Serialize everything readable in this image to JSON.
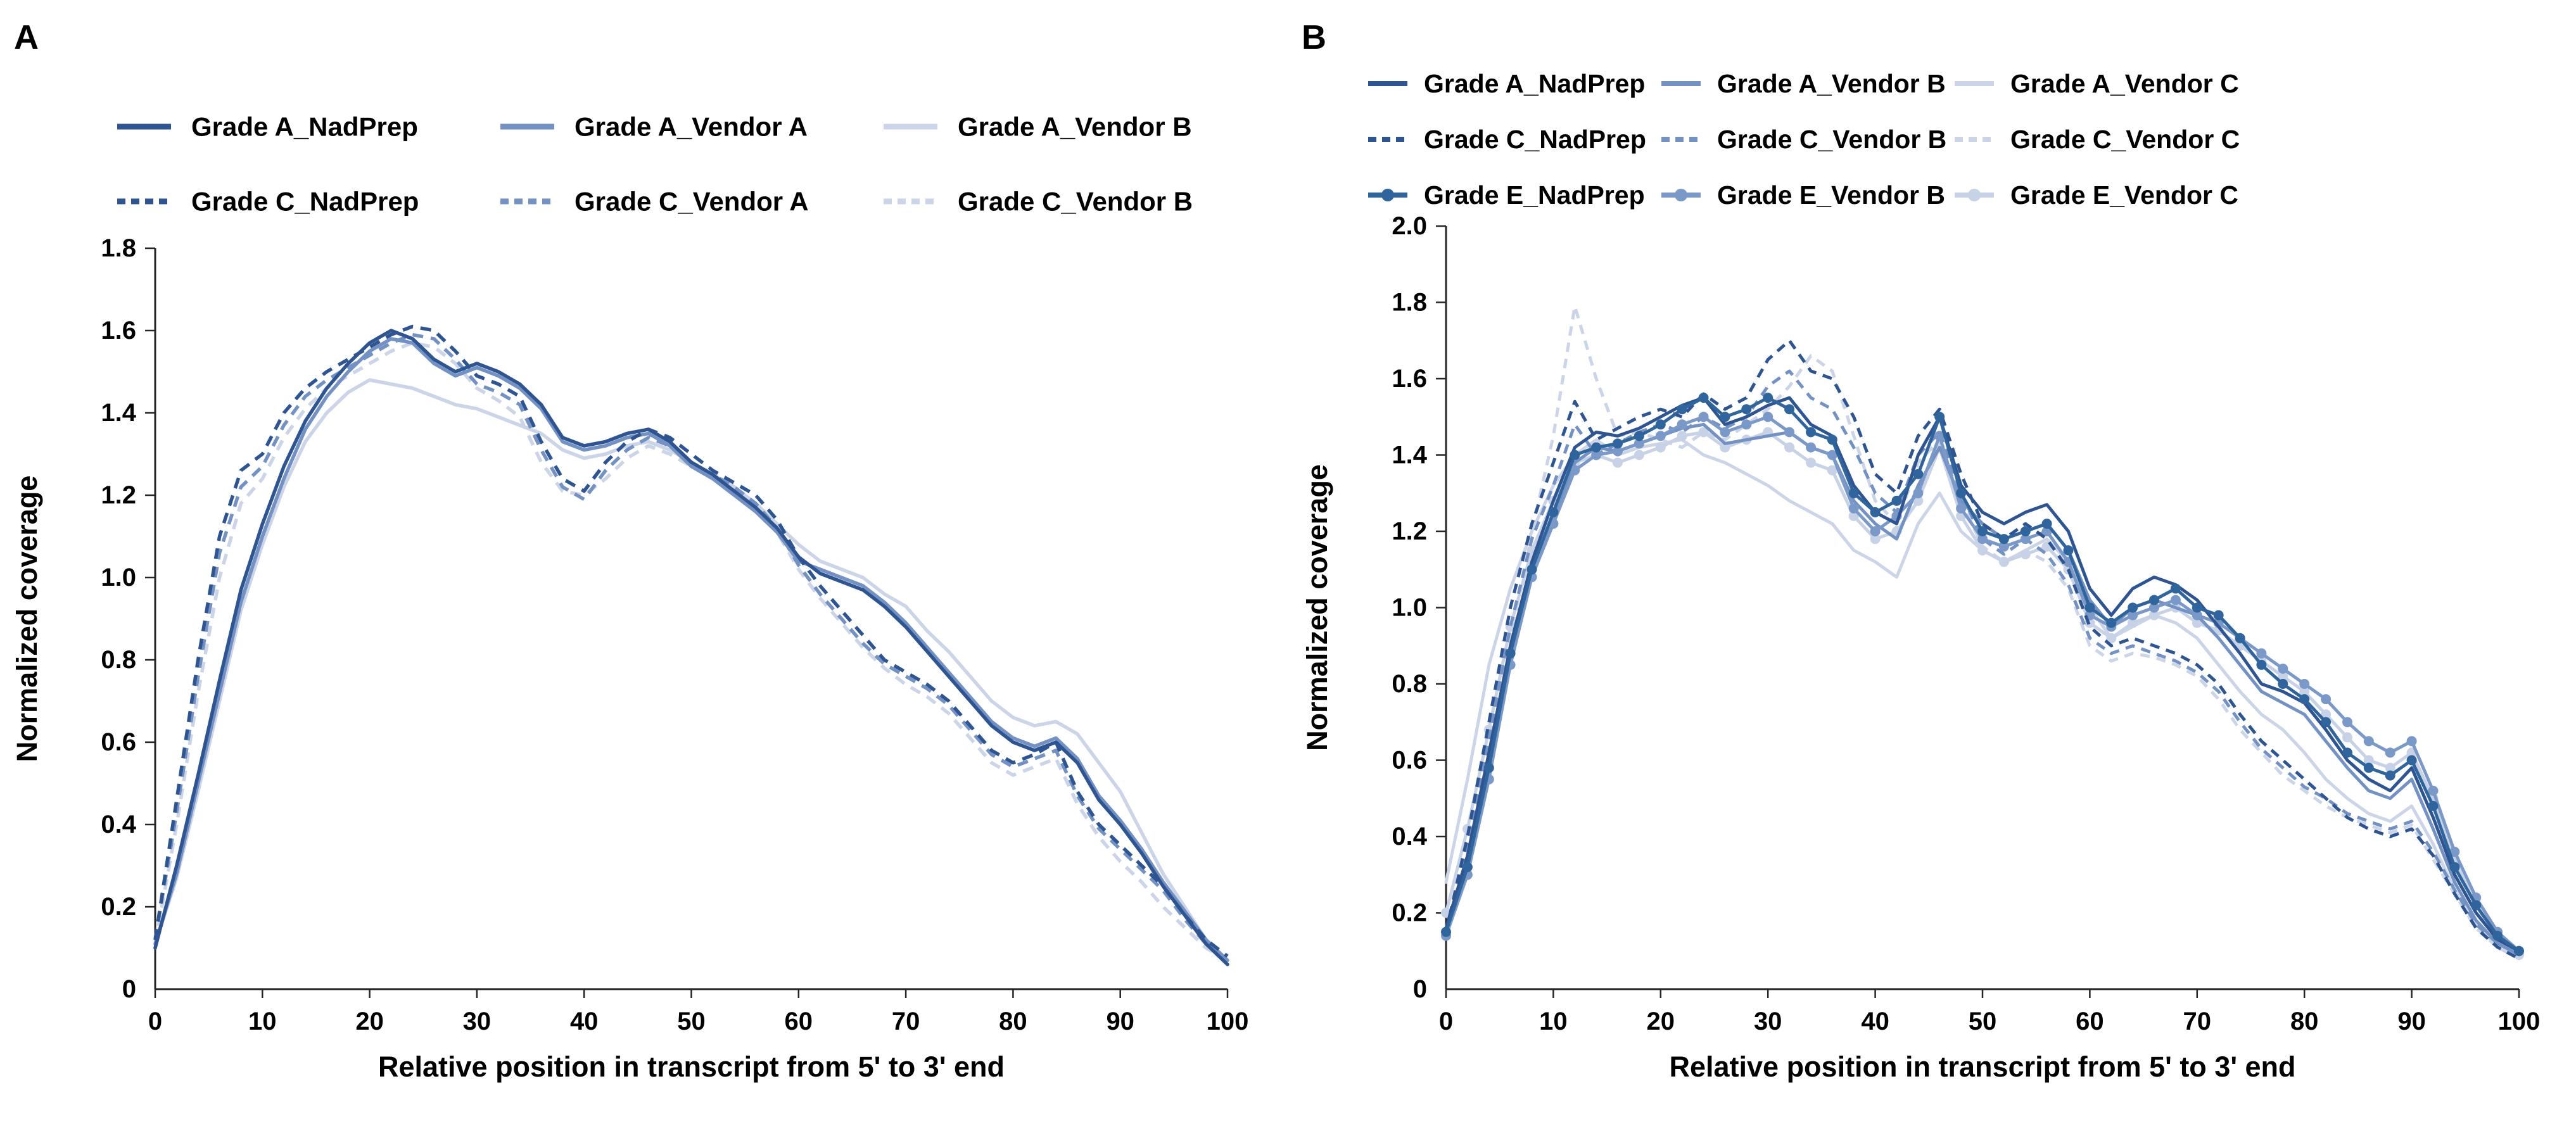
{
  "chart_data": [
    {
      "type": "line",
      "panel_label": "A",
      "title": "",
      "xlabel": "Relative position in transcript from 5' to 3' end",
      "ylabel": "Normalized coverage",
      "xlim": [
        0,
        100
      ],
      "ylim": [
        0,
        1.8
      ],
      "grid": false,
      "legend_position": "top",
      "xtick_labels": [
        "0",
        "10",
        "20",
        "30",
        "40",
        "50",
        "60",
        "70",
        "80",
        "90",
        "100"
      ],
      "ytick_labels": [
        "0",
        "0.2",
        "0.4",
        "0.6",
        "0.8",
        "1.0",
        "1.2",
        "1.4",
        "1.6",
        "1.8"
      ],
      "x": [
        0,
        2,
        4,
        6,
        8,
        10,
        12,
        14,
        16,
        18,
        20,
        22,
        24,
        26,
        28,
        30,
        32,
        34,
        36,
        38,
        40,
        42,
        44,
        46,
        48,
        50,
        52,
        54,
        56,
        58,
        60,
        62,
        64,
        66,
        68,
        70,
        72,
        74,
        76,
        78,
        80,
        82,
        84,
        86,
        88,
        90,
        92,
        94,
        96,
        98,
        100
      ],
      "series": [
        {
          "name": "Grade A_NadPrep",
          "color": "#2e5491",
          "line_style": "solid",
          "marker": false,
          "values": [
            0.1,
            0.3,
            0.52,
            0.75,
            0.97,
            1.13,
            1.27,
            1.38,
            1.46,
            1.52,
            1.57,
            1.6,
            1.58,
            1.53,
            1.5,
            1.52,
            1.5,
            1.47,
            1.42,
            1.34,
            1.32,
            1.33,
            1.35,
            1.36,
            1.33,
            1.28,
            1.25,
            1.21,
            1.17,
            1.12,
            1.05,
            1.01,
            0.99,
            0.97,
            0.93,
            0.88,
            0.82,
            0.76,
            0.7,
            0.64,
            0.6,
            0.58,
            0.6,
            0.55,
            0.46,
            0.4,
            0.33,
            0.25,
            0.18,
            0.11,
            0.06
          ]
        },
        {
          "name": "Grade A_Vendor A",
          "color": "#7391c3",
          "line_style": "solid",
          "marker": false,
          "values": [
            0.11,
            0.28,
            0.5,
            0.72,
            0.94,
            1.1,
            1.24,
            1.36,
            1.44,
            1.5,
            1.55,
            1.58,
            1.57,
            1.52,
            1.49,
            1.51,
            1.49,
            1.46,
            1.41,
            1.33,
            1.31,
            1.32,
            1.34,
            1.35,
            1.32,
            1.27,
            1.24,
            1.2,
            1.16,
            1.11,
            1.04,
            1.02,
            1.0,
            0.98,
            0.94,
            0.89,
            0.83,
            0.77,
            0.71,
            0.65,
            0.61,
            0.59,
            0.61,
            0.56,
            0.47,
            0.41,
            0.34,
            0.26,
            0.19,
            0.12,
            0.07
          ]
        },
        {
          "name": "Grade A_Vendor B",
          "color": "#ccd5e8",
          "line_style": "solid",
          "marker": false,
          "values": [
            0.11,
            0.27,
            0.48,
            0.7,
            0.92,
            1.08,
            1.22,
            1.33,
            1.4,
            1.45,
            1.48,
            1.47,
            1.46,
            1.44,
            1.42,
            1.41,
            1.39,
            1.37,
            1.35,
            1.31,
            1.29,
            1.3,
            1.32,
            1.33,
            1.31,
            1.28,
            1.25,
            1.22,
            1.18,
            1.13,
            1.08,
            1.04,
            1.02,
            1.0,
            0.96,
            0.93,
            0.87,
            0.82,
            0.76,
            0.7,
            0.66,
            0.64,
            0.65,
            0.62,
            0.55,
            0.48,
            0.38,
            0.28,
            0.2,
            0.12,
            0.07
          ]
        },
        {
          "name": "Grade C_NadPrep",
          "color": "#2e5491",
          "line_style": "dashed",
          "marker": false,
          "values": [
            0.12,
            0.46,
            0.8,
            1.1,
            1.26,
            1.3,
            1.4,
            1.46,
            1.5,
            1.53,
            1.56,
            1.59,
            1.61,
            1.6,
            1.55,
            1.49,
            1.47,
            1.44,
            1.33,
            1.24,
            1.21,
            1.28,
            1.33,
            1.36,
            1.34,
            1.3,
            1.26,
            1.23,
            1.2,
            1.14,
            1.05,
            0.98,
            0.92,
            0.86,
            0.8,
            0.77,
            0.74,
            0.7,
            0.64,
            0.58,
            0.55,
            0.57,
            0.6,
            0.48,
            0.4,
            0.35,
            0.3,
            0.25,
            0.18,
            0.12,
            0.08
          ]
        },
        {
          "name": "Grade C_Vendor A",
          "color": "#7391c3",
          "line_style": "dashed",
          "marker": false,
          "values": [
            0.12,
            0.43,
            0.76,
            1.06,
            1.22,
            1.27,
            1.37,
            1.44,
            1.48,
            1.51,
            1.54,
            1.57,
            1.59,
            1.58,
            1.53,
            1.47,
            1.45,
            1.42,
            1.31,
            1.22,
            1.19,
            1.26,
            1.31,
            1.34,
            1.32,
            1.28,
            1.25,
            1.22,
            1.18,
            1.12,
            1.03,
            0.96,
            0.9,
            0.84,
            0.79,
            0.76,
            0.73,
            0.69,
            0.63,
            0.57,
            0.54,
            0.56,
            0.58,
            0.47,
            0.39,
            0.34,
            0.29,
            0.24,
            0.17,
            0.11,
            0.07
          ]
        },
        {
          "name": "Grade C_Vendor B",
          "color": "#ccd5e8",
          "line_style": "dashed",
          "marker": false,
          "values": [
            0.11,
            0.4,
            0.72,
            1.0,
            1.18,
            1.24,
            1.34,
            1.41,
            1.46,
            1.49,
            1.52,
            1.55,
            1.57,
            1.56,
            1.52,
            1.46,
            1.43,
            1.39,
            1.28,
            1.21,
            1.2,
            1.24,
            1.29,
            1.32,
            1.3,
            1.27,
            1.24,
            1.21,
            1.17,
            1.11,
            1.02,
            0.95,
            0.89,
            0.83,
            0.78,
            0.74,
            0.71,
            0.67,
            0.61,
            0.55,
            0.52,
            0.54,
            0.56,
            0.45,
            0.37,
            0.31,
            0.26,
            0.2,
            0.15,
            0.1,
            0.07
          ]
        }
      ]
    },
    {
      "type": "line",
      "panel_label": "B",
      "title": "",
      "xlabel": "Relative position in transcript from 5' to 3' end",
      "ylabel": "Normalized coverage",
      "xlim": [
        0,
        100
      ],
      "ylim": [
        0,
        2.0
      ],
      "grid": false,
      "legend_position": "top",
      "xtick_labels": [
        "0",
        "10",
        "20",
        "30",
        "40",
        "50",
        "60",
        "70",
        "80",
        "90",
        "100"
      ],
      "ytick_labels": [
        "0",
        "0.2",
        "0.4",
        "0.6",
        "0.8",
        "1.0",
        "1.2",
        "1.4",
        "1.6",
        "1.8",
        "2.0"
      ],
      "x": [
        0,
        2,
        4,
        6,
        8,
        10,
        12,
        14,
        16,
        18,
        20,
        22,
        24,
        26,
        28,
        30,
        32,
        34,
        36,
        38,
        40,
        42,
        44,
        46,
        48,
        50,
        52,
        54,
        56,
        58,
        60,
        62,
        64,
        66,
        68,
        70,
        72,
        74,
        76,
        78,
        80,
        82,
        84,
        86,
        88,
        90,
        92,
        94,
        96,
        98,
        100
      ],
      "series": [
        {
          "name": "Grade A_NadPrep",
          "color": "#2e5491",
          "line_style": "solid",
          "marker": false,
          "values": [
            0.16,
            0.35,
            0.62,
            0.9,
            1.12,
            1.28,
            1.42,
            1.46,
            1.45,
            1.47,
            1.5,
            1.53,
            1.55,
            1.48,
            1.5,
            1.53,
            1.55,
            1.48,
            1.45,
            1.32,
            1.25,
            1.22,
            1.4,
            1.5,
            1.32,
            1.25,
            1.22,
            1.25,
            1.27,
            1.2,
            1.05,
            0.98,
            1.05,
            1.08,
            1.06,
            1.02,
            0.95,
            0.88,
            0.8,
            0.78,
            0.75,
            0.68,
            0.6,
            0.55,
            0.52,
            0.58,
            0.45,
            0.3,
            0.2,
            0.13,
            0.1
          ]
        },
        {
          "name": "Grade A_Vendor B",
          "color": "#7391c3",
          "line_style": "solid",
          "marker": false,
          "values": [
            0.16,
            0.33,
            0.58,
            0.85,
            1.08,
            1.24,
            1.38,
            1.42,
            1.41,
            1.43,
            1.45,
            1.47,
            1.48,
            1.43,
            1.44,
            1.45,
            1.46,
            1.42,
            1.4,
            1.28,
            1.22,
            1.18,
            1.32,
            1.42,
            1.28,
            1.22,
            1.18,
            1.2,
            1.22,
            1.15,
            1.02,
            0.95,
            1.0,
            1.02,
            1.0,
            0.98,
            0.92,
            0.85,
            0.78,
            0.75,
            0.72,
            0.65,
            0.58,
            0.52,
            0.5,
            0.55,
            0.42,
            0.28,
            0.18,
            0.12,
            0.09
          ]
        },
        {
          "name": "Grade A_Vendor C",
          "color": "#ccd5e8",
          "line_style": "solid",
          "marker": false,
          "values": [
            0.28,
            0.55,
            0.85,
            1.05,
            1.2,
            1.32,
            1.4,
            1.44,
            1.4,
            1.42,
            1.43,
            1.44,
            1.4,
            1.38,
            1.35,
            1.32,
            1.28,
            1.25,
            1.22,
            1.15,
            1.12,
            1.08,
            1.22,
            1.3,
            1.2,
            1.15,
            1.12,
            1.15,
            1.18,
            1.12,
            1.0,
            0.92,
            0.95,
            0.98,
            0.96,
            0.92,
            0.85,
            0.78,
            0.72,
            0.68,
            0.62,
            0.55,
            0.5,
            0.46,
            0.44,
            0.48,
            0.38,
            0.26,
            0.17,
            0.11,
            0.08
          ]
        },
        {
          "name": "Grade C_NadPrep",
          "color": "#2e5491",
          "line_style": "dashed",
          "marker": false,
          "values": [
            0.15,
            0.4,
            0.7,
            1.0,
            1.22,
            1.38,
            1.54,
            1.44,
            1.47,
            1.5,
            1.52,
            1.5,
            1.56,
            1.52,
            1.55,
            1.65,
            1.7,
            1.62,
            1.6,
            1.5,
            1.35,
            1.3,
            1.45,
            1.52,
            1.35,
            1.22,
            1.18,
            1.22,
            1.18,
            1.1,
            0.95,
            0.9,
            0.92,
            0.9,
            0.88,
            0.85,
            0.8,
            0.72,
            0.65,
            0.6,
            0.55,
            0.5,
            0.45,
            0.42,
            0.4,
            0.42,
            0.35,
            0.25,
            0.16,
            0.11,
            0.08
          ]
        },
        {
          "name": "Grade C_Vendor B",
          "color": "#7391c3",
          "line_style": "dashed",
          "marker": false,
          "values": [
            0.15,
            0.38,
            0.66,
            0.95,
            1.18,
            1.32,
            1.48,
            1.4,
            1.43,
            1.46,
            1.48,
            1.46,
            1.5,
            1.47,
            1.5,
            1.58,
            1.62,
            1.55,
            1.52,
            1.42,
            1.3,
            1.25,
            1.4,
            1.46,
            1.3,
            1.18,
            1.14,
            1.18,
            1.14,
            1.06,
            0.92,
            0.88,
            0.9,
            0.88,
            0.86,
            0.83,
            0.78,
            0.7,
            0.63,
            0.58,
            0.53,
            0.5,
            0.46,
            0.44,
            0.42,
            0.44,
            0.36,
            0.26,
            0.17,
            0.12,
            0.09
          ]
        },
        {
          "name": "Grade C_Vendor C",
          "color": "#ccd5e8",
          "line_style": "dashed",
          "marker": false,
          "values": [
            0.15,
            0.36,
            0.62,
            0.92,
            1.2,
            1.45,
            1.79,
            1.6,
            1.45,
            1.46,
            1.44,
            1.42,
            1.46,
            1.44,
            1.48,
            1.52,
            1.58,
            1.66,
            1.62,
            1.45,
            1.28,
            1.22,
            1.38,
            1.44,
            1.28,
            1.16,
            1.12,
            1.15,
            1.12,
            1.05,
            0.9,
            0.86,
            0.88,
            0.87,
            0.85,
            0.82,
            0.76,
            0.68,
            0.62,
            0.56,
            0.52,
            0.48,
            0.45,
            0.43,
            0.41,
            0.43,
            0.34,
            0.25,
            0.16,
            0.11,
            0.08
          ]
        },
        {
          "name": "Grade E_NadPrep",
          "color": "#2f659c",
          "line_style": "solid",
          "marker": true,
          "values": [
            0.15,
            0.32,
            0.58,
            0.88,
            1.1,
            1.25,
            1.4,
            1.42,
            1.43,
            1.45,
            1.48,
            1.52,
            1.55,
            1.5,
            1.52,
            1.55,
            1.52,
            1.46,
            1.44,
            1.3,
            1.25,
            1.28,
            1.35,
            1.5,
            1.3,
            1.2,
            1.18,
            1.2,
            1.22,
            1.15,
            1.0,
            0.96,
            1.0,
            1.02,
            1.05,
            1.0,
            0.98,
            0.92,
            0.85,
            0.8,
            0.76,
            0.7,
            0.62,
            0.58,
            0.56,
            0.6,
            0.48,
            0.32,
            0.22,
            0.14,
            0.1
          ]
        },
        {
          "name": "Grade E_Vendor B",
          "color": "#7b99c8",
          "line_style": "solid",
          "marker": true,
          "values": [
            0.14,
            0.3,
            0.55,
            0.85,
            1.08,
            1.22,
            1.36,
            1.4,
            1.41,
            1.43,
            1.45,
            1.48,
            1.5,
            1.46,
            1.48,
            1.5,
            1.46,
            1.42,
            1.4,
            1.26,
            1.2,
            1.24,
            1.3,
            1.45,
            1.26,
            1.18,
            1.16,
            1.18,
            1.2,
            1.12,
            0.98,
            0.95,
            0.98,
            1.0,
            1.02,
            0.98,
            0.96,
            0.92,
            0.88,
            0.84,
            0.8,
            0.76,
            0.7,
            0.65,
            0.62,
            0.65,
            0.52,
            0.36,
            0.24,
            0.15,
            0.1
          ]
        },
        {
          "name": "Grade E_Vendor C",
          "color": "#c7d2e6",
          "line_style": "solid",
          "marker": true,
          "values": [
            0.2,
            0.42,
            0.68,
            0.95,
            1.15,
            1.28,
            1.38,
            1.4,
            1.38,
            1.4,
            1.42,
            1.45,
            1.46,
            1.42,
            1.44,
            1.46,
            1.42,
            1.38,
            1.36,
            1.24,
            1.18,
            1.2,
            1.28,
            1.42,
            1.24,
            1.15,
            1.12,
            1.14,
            1.16,
            1.1,
            0.96,
            0.92,
            0.96,
            0.98,
            1.0,
            0.96,
            0.94,
            0.9,
            0.86,
            0.82,
            0.78,
            0.72,
            0.66,
            0.6,
            0.58,
            0.62,
            0.5,
            0.34,
            0.22,
            0.13,
            0.09
          ]
        }
      ]
    }
  ]
}
